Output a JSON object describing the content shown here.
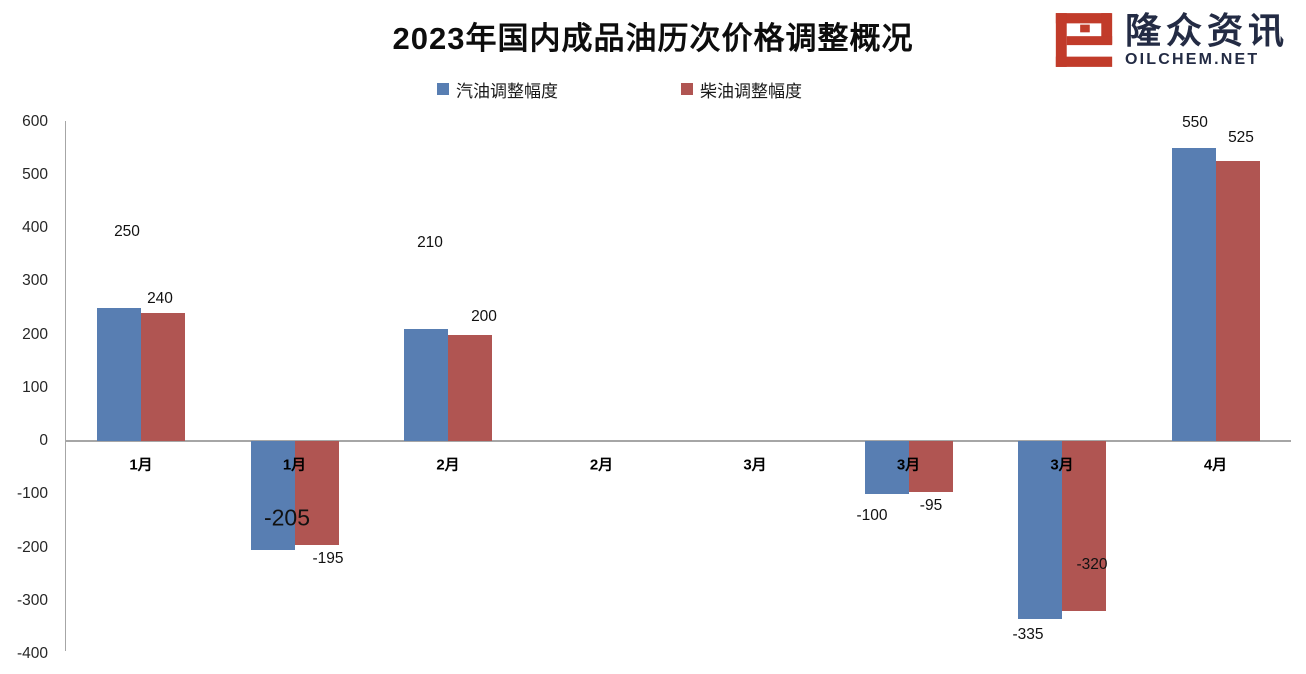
{
  "logo": {
    "brand_cn": "隆众资讯",
    "brand_domain": "OILCHEM.NET",
    "icon_color": "#c13b2a",
    "text_color": "#232b44"
  },
  "chart_data": {
    "type": "bar",
    "title": "2023年国内成品油历次价格调整概况",
    "categories": [
      "1月",
      "1月",
      "2月",
      "2月",
      "3月",
      "3月",
      "3月",
      "4月"
    ],
    "series": [
      {
        "name": "汽油调整幅度",
        "color": "#587EB2",
        "values": [
          250,
          -205,
          210,
          null,
          null,
          -100,
          -335,
          550
        ]
      },
      {
        "name": "柴油调整幅度",
        "color": "#B05552",
        "values": [
          240,
          -195,
          200,
          null,
          null,
          -95,
          -320,
          525
        ]
      }
    ],
    "xlabel": "",
    "ylabel": "",
    "ylim": [
      -400,
      600
    ],
    "ytick_step": 100,
    "grid": false,
    "legend_position": "top-center",
    "axis_color": "#a6a6a6"
  }
}
